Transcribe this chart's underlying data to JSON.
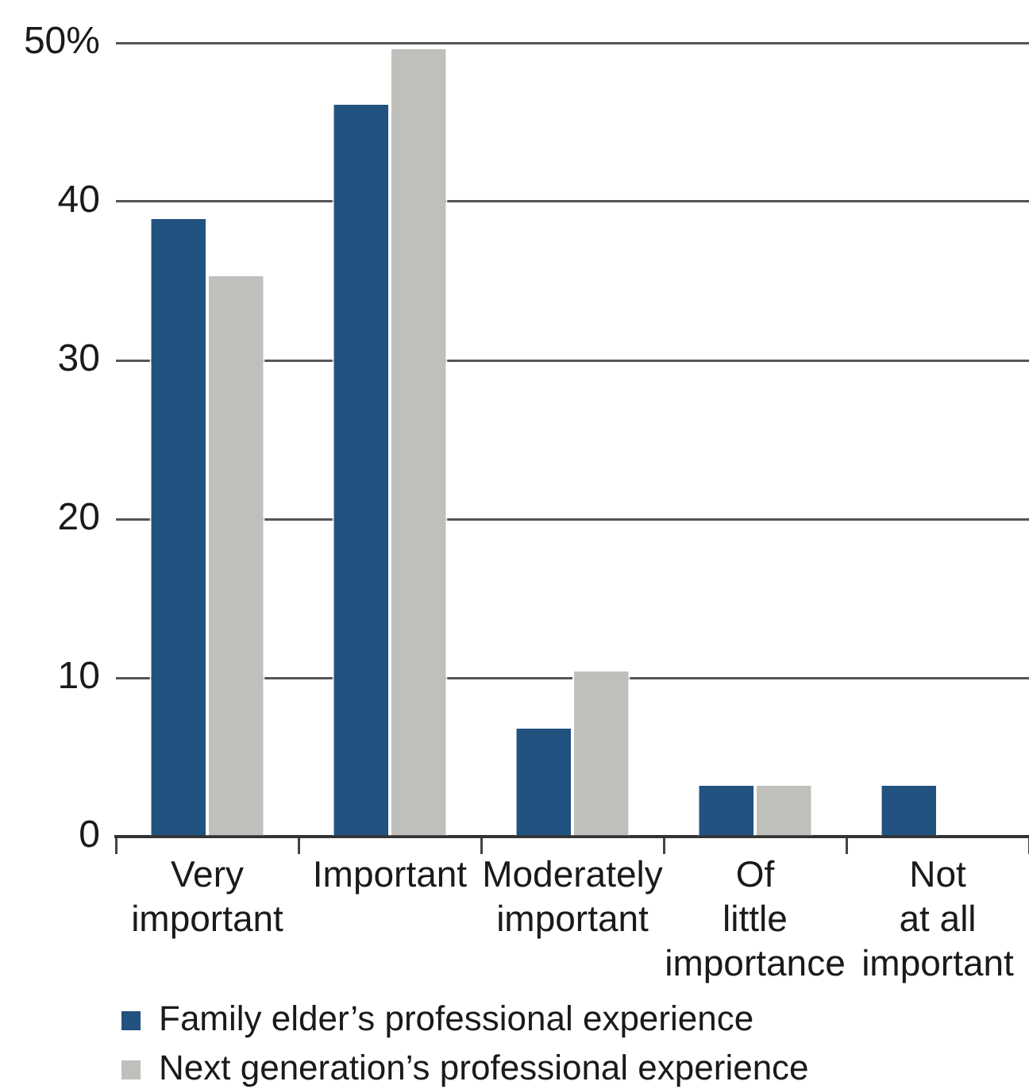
{
  "chart_data": {
    "type": "bar",
    "categories": [
      "Very important",
      "Important",
      "Moderately important",
      "Of little importance",
      "Not at all important"
    ],
    "series": [
      {
        "name": "Family elder’s professional experience",
        "color": "#22527f",
        "values": [
          39,
          46.2,
          6.9,
          3.3,
          3.3
        ]
      },
      {
        "name": "Next generation’s professional experience",
        "color": "#bfc0bb",
        "values": [
          35.4,
          49.7,
          10.5,
          3.3,
          0
        ]
      }
    ],
    "ylim": [
      0,
      50
    ],
    "yticks": [
      0,
      10,
      20,
      30,
      40,
      {
        "value": 50,
        "label": "50%"
      }
    ],
    "grid": "y",
    "legend": "bottom"
  }
}
